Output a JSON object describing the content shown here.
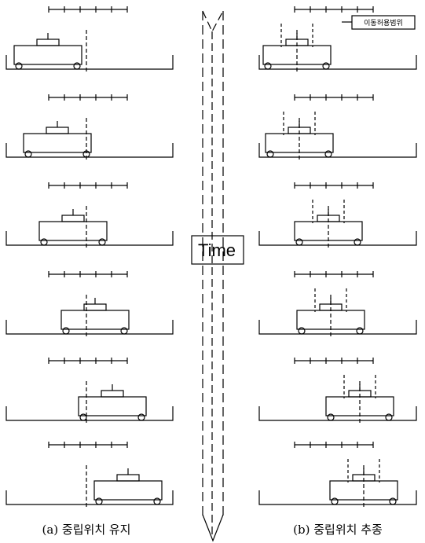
{
  "axis_label": "Time",
  "callout": "이동허용범위",
  "captions": [
    "(a) 중립위치 유지",
    "(b) 중립위치 추종"
  ]
}
